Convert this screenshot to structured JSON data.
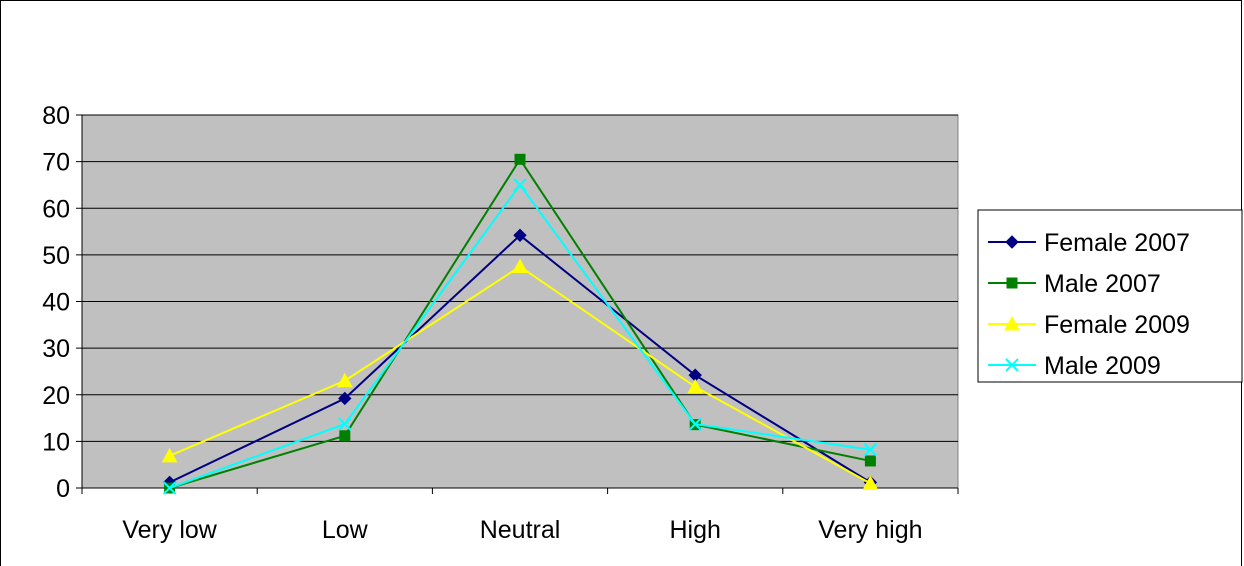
{
  "chart_data": {
    "type": "line",
    "categories": [
      "Very low",
      "Low",
      "Neutral",
      "High",
      "Very high"
    ],
    "ylim": [
      0,
      80
    ],
    "yticks": [
      0,
      10,
      20,
      30,
      40,
      50,
      60,
      70,
      80
    ],
    "grid": true,
    "legend_position": "right",
    "plot_background": "#c0c0c0",
    "series": [
      {
        "name": "Female 2007",
        "color": "#000080",
        "marker": "diamond",
        "values": [
          1.2,
          19.2,
          54.2,
          24.2,
          1.2
        ]
      },
      {
        "name": "Male 2007",
        "color": "#008000",
        "marker": "square",
        "values": [
          0,
          11.2,
          70.5,
          13.6,
          5.8
        ]
      },
      {
        "name": "Female 2009",
        "color": "#ffff00",
        "marker": "triangle",
        "values": [
          6.9,
          23.0,
          47.5,
          21.7,
          1.0
        ]
      },
      {
        "name": "Male 2009",
        "color": "#00ffff",
        "marker": "x",
        "values": [
          0,
          13.7,
          65.0,
          13.7,
          8.2
        ]
      }
    ]
  }
}
